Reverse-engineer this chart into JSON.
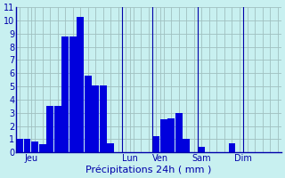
{
  "bar_values": [
    1,
    1,
    0.8,
    0.6,
    3.5,
    3.5,
    8.8,
    8.8,
    10.3,
    5.8,
    5.1,
    5.1,
    0.7,
    0,
    0,
    0,
    0,
    0,
    1.2,
    2.5,
    2.6,
    3.0,
    1.0,
    0,
    0.4,
    0,
    0,
    0,
    0.7,
    0
  ],
  "bar_color": "#0000dd",
  "background_color": "#c8f0f0",
  "grid_color": "#a0c0c0",
  "axis_color": "#0000aa",
  "xlabel": "Précipitations 24h ( mm )",
  "ylim": [
    0,
    11
  ],
  "yticks": [
    0,
    1,
    2,
    3,
    4,
    5,
    6,
    7,
    8,
    9,
    10,
    11
  ],
  "day_labels": [
    "Jeu",
    "Lun",
    "Ven",
    "Sam",
    "Dim"
  ],
  "day_tick_positions": [
    1.5,
    14.5,
    18.5,
    24.0,
    29.5
  ],
  "vline_positions": [
    13.5,
    17.5,
    23.5,
    29.5
  ],
  "n_bars": 30,
  "total_slots": 35,
  "xlabel_fontsize": 8,
  "ytick_fontsize": 7,
  "xtick_fontsize": 7
}
